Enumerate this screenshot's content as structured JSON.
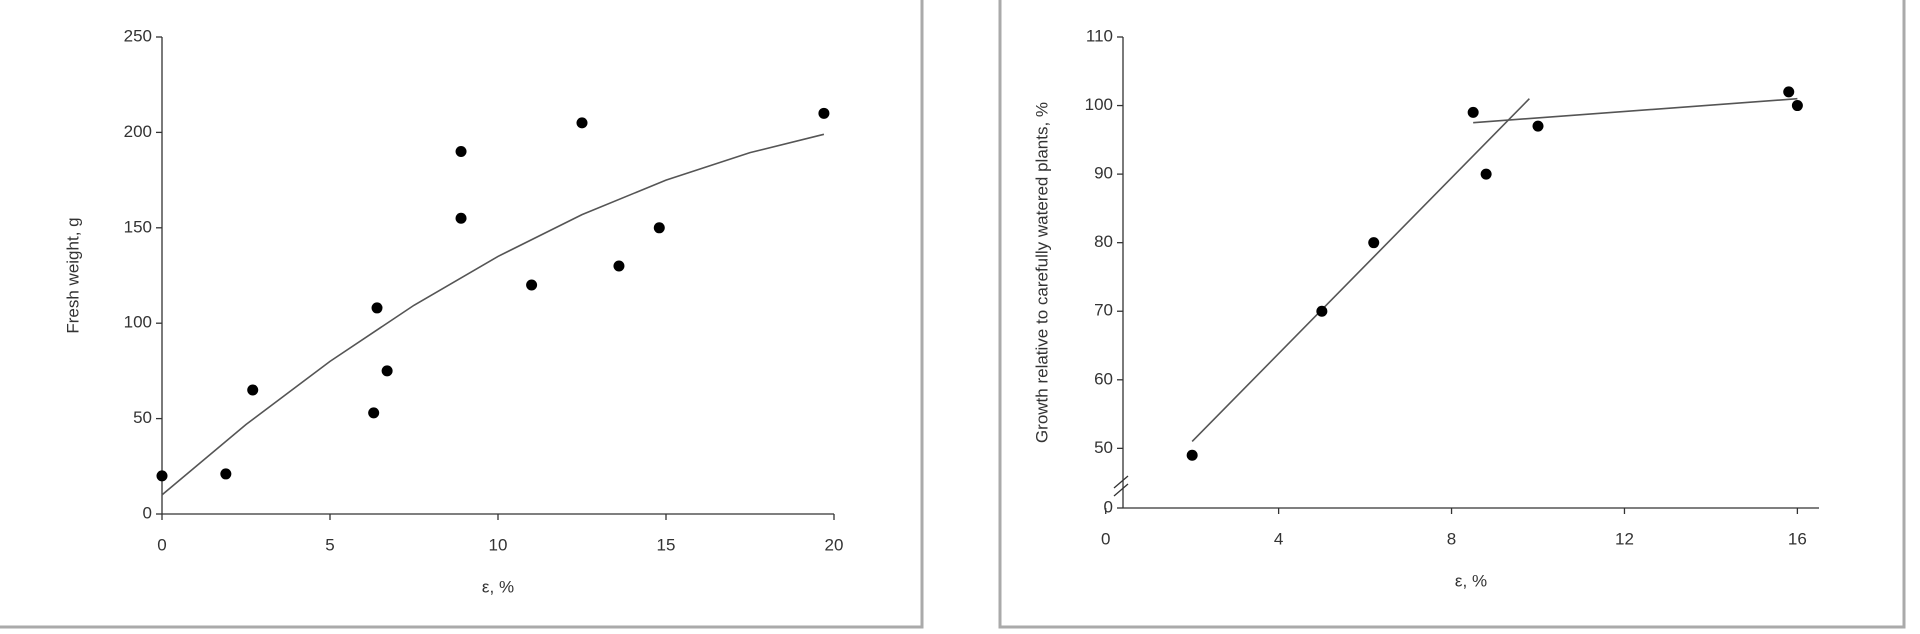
{
  "chart_data": [
    {
      "type": "scatter",
      "x_label": "ε, %",
      "y_label": "Fresh weight, g",
      "xlim": [
        0,
        20
      ],
      "xticks": [
        0,
        5,
        10,
        15,
        20
      ],
      "ylim": [
        0,
        250
      ],
      "yticks": [
        0,
        50,
        100,
        150,
        200,
        250
      ],
      "color": "#000000",
      "line_color": "#555555",
      "x": [
        0,
        1.9,
        2.7,
        6.3,
        6.4,
        6.7,
        8.9,
        8.9,
        11,
        12.5,
        13.6,
        14.8,
        19.7
      ],
      "values": [
        20,
        21,
        65,
        53,
        108,
        75,
        155,
        190,
        120,
        205,
        130,
        150,
        210
      ],
      "trend": [
        {
          "x": [
            0,
            2.5,
            5,
            7.5,
            10,
            12.5,
            15,
            17.5,
            19.7
          ],
          "values": [
            10,
            46.9,
            80,
            109.4,
            135,
            156.9,
            175,
            189.4,
            199
          ]
        }
      ]
    },
    {
      "type": "scatter",
      "x_label": "ε, %",
      "y_label": "Growth relative to carefully watered plants, %",
      "xlim": [
        0.4,
        16.5
      ],
      "xticks": [
        0,
        4,
        8,
        12,
        16
      ],
      "ylim": [
        41.3,
        110
      ],
      "yticks": [
        0,
        50,
        60,
        70,
        80,
        90,
        100,
        110
      ],
      "axis_break": true,
      "color": "#000000",
      "line_color": "#555555",
      "x": [
        2,
        5,
        6.2,
        8.5,
        8.8,
        10,
        15.8,
        16
      ],
      "values": [
        49,
        70,
        80,
        99,
        90,
        97,
        102,
        100
      ],
      "trend": [
        {
          "x": [
            2,
            9.8
          ],
          "values": [
            51,
            101
          ]
        },
        {
          "x": [
            8.5,
            16
          ],
          "values": [
            97.5,
            101
          ]
        }
      ]
    }
  ]
}
